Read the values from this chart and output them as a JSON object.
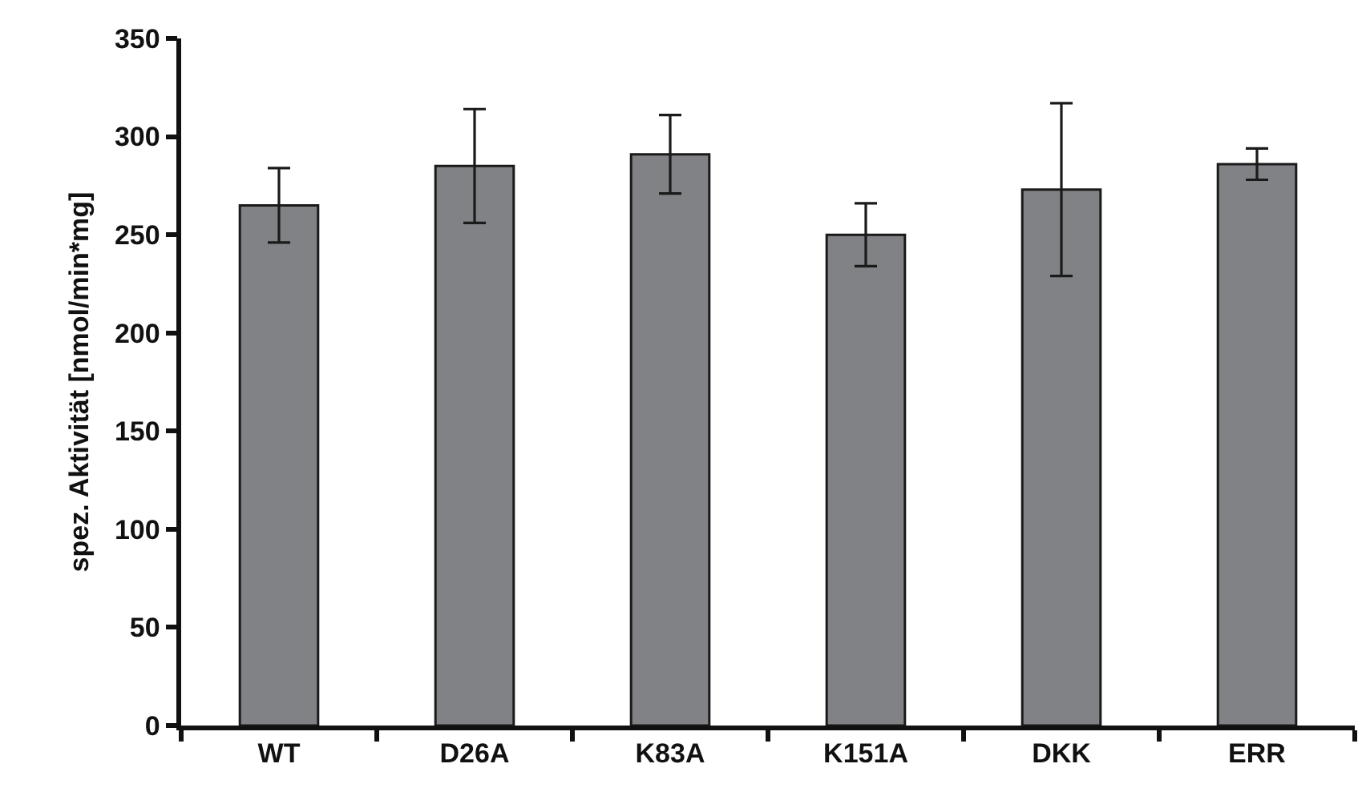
{
  "chart_data": {
    "type": "bar",
    "ylabel": "spez. Aktivität [nmol/min*mg]",
    "categories": [
      "WT",
      "D26A",
      "K83A",
      "K151A",
      "DKK",
      "ERR"
    ],
    "values": [
      265,
      285,
      291,
      250,
      273,
      286
    ],
    "errors": [
      19,
      29,
      20,
      16,
      44,
      8
    ],
    "color": "#808285",
    "ylim": [
      0,
      350
    ],
    "yticks": [
      0,
      50,
      100,
      150,
      200,
      250,
      300,
      350
    ]
  }
}
